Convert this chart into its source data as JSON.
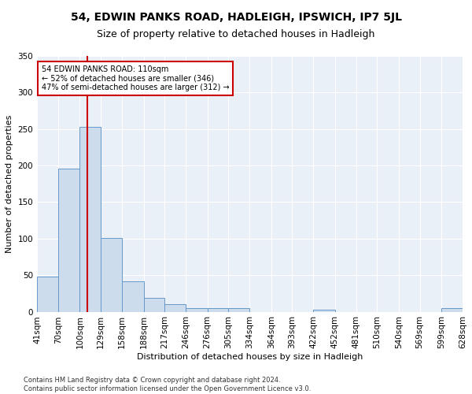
{
  "title": "54, EDWIN PANKS ROAD, HADLEIGH, IPSWICH, IP7 5JL",
  "subtitle": "Size of property relative to detached houses in Hadleigh",
  "xlabel": "Distribution of detached houses by size in Hadleigh",
  "ylabel": "Number of detached properties",
  "bar_color": "#ccdcec",
  "bar_edge_color": "#6699cc",
  "background_color": "#eaf0f8",
  "bin_edges": [
    41,
    70,
    100,
    129,
    158,
    188,
    217,
    246,
    276,
    305,
    334,
    364,
    393,
    422,
    452,
    481,
    510,
    540,
    569,
    599,
    628
  ],
  "bar_heights": [
    48,
    196,
    253,
    101,
    41,
    19,
    10,
    5,
    5,
    5,
    0,
    0,
    0,
    3,
    0,
    0,
    0,
    0,
    0,
    5
  ],
  "vline_x": 110,
  "vline_color": "#cc0000",
  "annotation_text": "54 EDWIN PANKS ROAD: 110sqm\n← 52% of detached houses are smaller (346)\n47% of semi-detached houses are larger (312) →",
  "annotation_box_color": "white",
  "annotation_box_edge": "#cc0000",
  "ylim": [
    0,
    350
  ],
  "yticks": [
    0,
    50,
    100,
    150,
    200,
    250,
    300,
    350
  ],
  "footer_text": "Contains HM Land Registry data © Crown copyright and database right 2024.\nContains public sector information licensed under the Open Government Licence v3.0.",
  "title_fontsize": 10,
  "subtitle_fontsize": 9,
  "axis_label_fontsize": 8,
  "tick_fontsize": 7.5
}
